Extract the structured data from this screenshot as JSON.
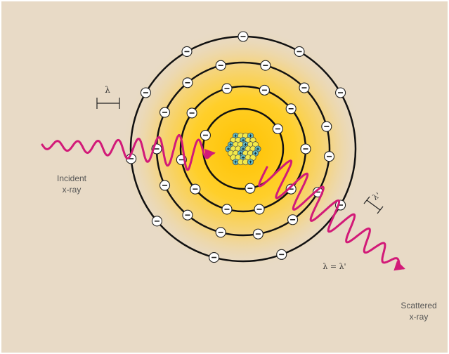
{
  "diagram": {
    "colors": {
      "background": "#e8dac6",
      "glow_inner": "#ffc200",
      "glow_outer": "#e8dac6",
      "shell_stroke": "#111111",
      "electron_fill": "#ffffff",
      "wave": "#d21a78",
      "proton": "#f2e84a",
      "neutron": "#5fb9c2"
    },
    "electron_symbol": "⊖",
    "labels": {
      "incident_line1": "Incident",
      "incident_line2": "x-ray",
      "scattered_line1": "Scattered",
      "scattered_line2": "x-ray",
      "lambda": "λ",
      "lambda_prime": "λ'",
      "equation": "λ = λ'"
    }
  }
}
